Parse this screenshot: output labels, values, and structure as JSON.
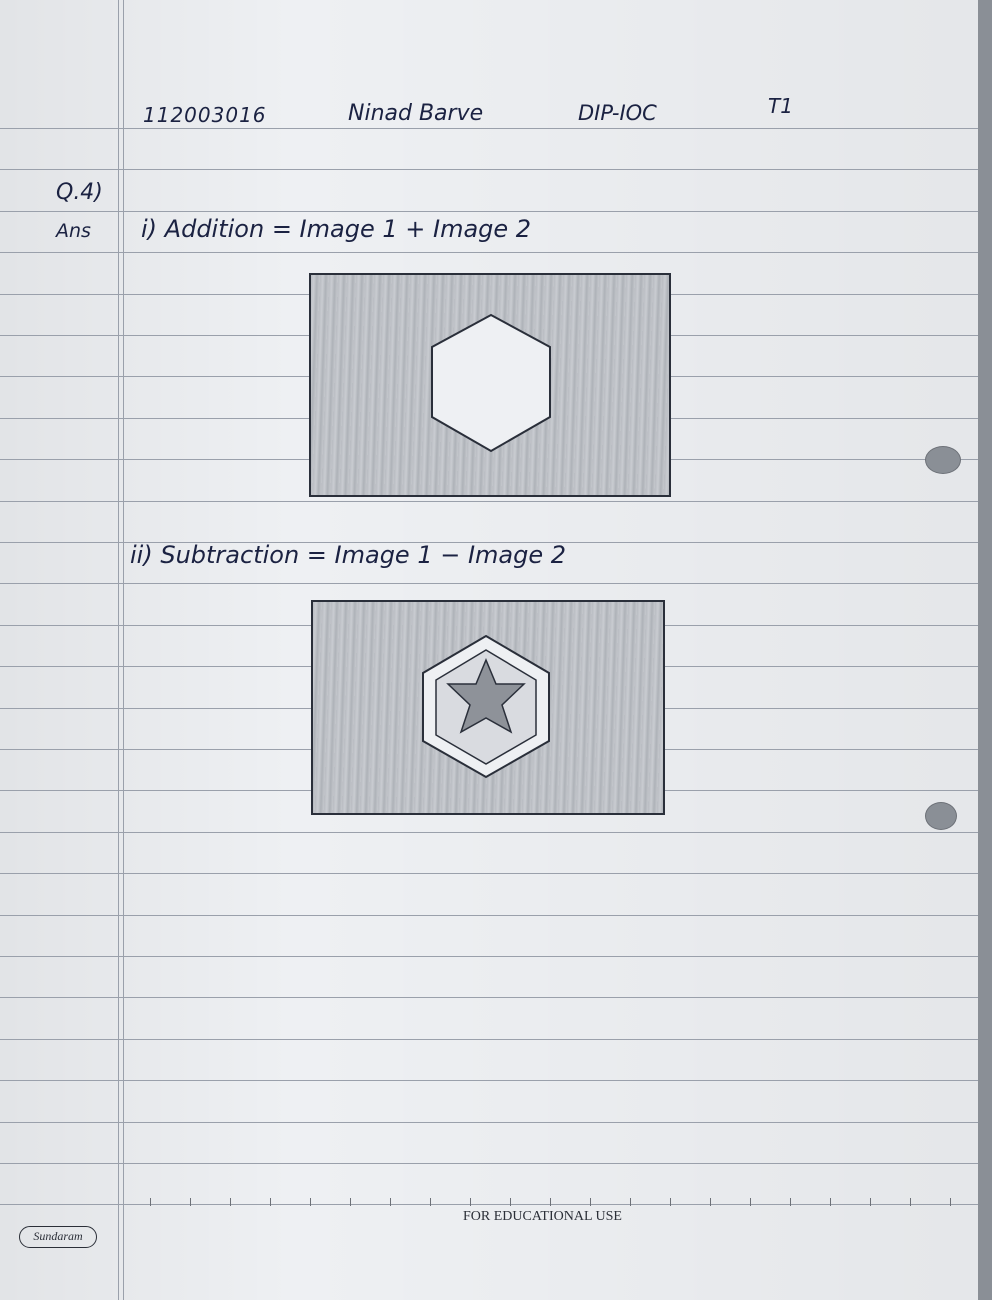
{
  "header": {
    "roll_no": "112003016",
    "name": "Ninad Barve",
    "subject": "DIP-IOC",
    "term": "T1"
  },
  "question": {
    "number": "Q.4)",
    "ans_label": "Ans"
  },
  "items": [
    {
      "text": "i) Addition  =  Image 1 + Image 2"
    },
    {
      "text": "ii) Subtraction  =  Image 1 −  Image 2"
    }
  ],
  "footer": {
    "text": "FOR EDUCATIONAL USE",
    "brand": "Sundaram"
  },
  "colors": {
    "ink": "#1b2242",
    "paper": "#eef0f3",
    "rule": "#9aa0ab",
    "shading": "#b9bcc2"
  }
}
